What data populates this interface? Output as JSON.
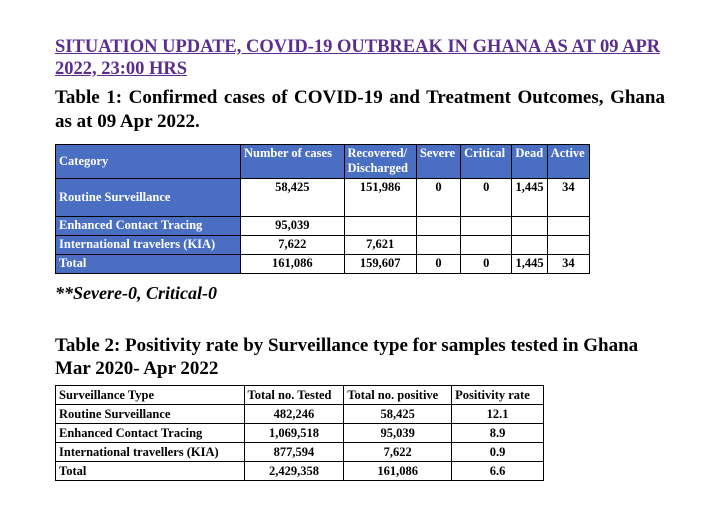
{
  "heading": "SITUATION UPDATE, COVID-19 OUTBREAK IN GHANA AS AT 09 APR 2022, 23:00 HRS",
  "table1": {
    "caption": "Table 1: Confirmed cases of COVID-19 and Treatment Outcomes, Ghana as at 09 Apr 2022.",
    "headers": [
      "Category",
      "Number of cases",
      "Recovered/ Discharged",
      "Severe",
      "Critical",
      "Dead",
      "Active"
    ],
    "rows": [
      [
        "Routine Surveillance",
        "58,425",
        "151,986",
        "0",
        "0",
        "1,445",
        "34"
      ],
      [
        "Enhanced Contact Tracing",
        "95,039",
        "",
        "",
        "",
        "",
        ""
      ],
      [
        "International travelers (KIA)",
        "7,622",
        "7,621",
        "",
        "",
        "",
        ""
      ],
      [
        "Total",
        "161,086",
        "159,607",
        "0",
        "0",
        "1,445",
        "34"
      ]
    ],
    "footnote": "**Severe-0, Critical-0"
  },
  "table2": {
    "caption": "Table 2: Positivity rate by Surveillance type for samples tested in Ghana Mar 2020- Apr 2022",
    "headers": [
      "Surveillance Type",
      "Total no. Tested",
      "Total no. positive",
      "Positivity rate"
    ],
    "rows": [
      [
        "Routine Surveillance",
        "482,246",
        "58,425",
        "12.1"
      ],
      [
        "Enhanced Contact Tracing",
        "1,069,518",
        "95,039",
        "8.9"
      ],
      [
        "International travellers (KIA)",
        "877,594",
        "7,622",
        "0.9"
      ],
      [
        "Total",
        "2,429,358",
        "161,086",
        "6.6"
      ]
    ]
  },
  "colors": {
    "heading": "#5b2d8e",
    "table_header": "#4a6fc2"
  }
}
